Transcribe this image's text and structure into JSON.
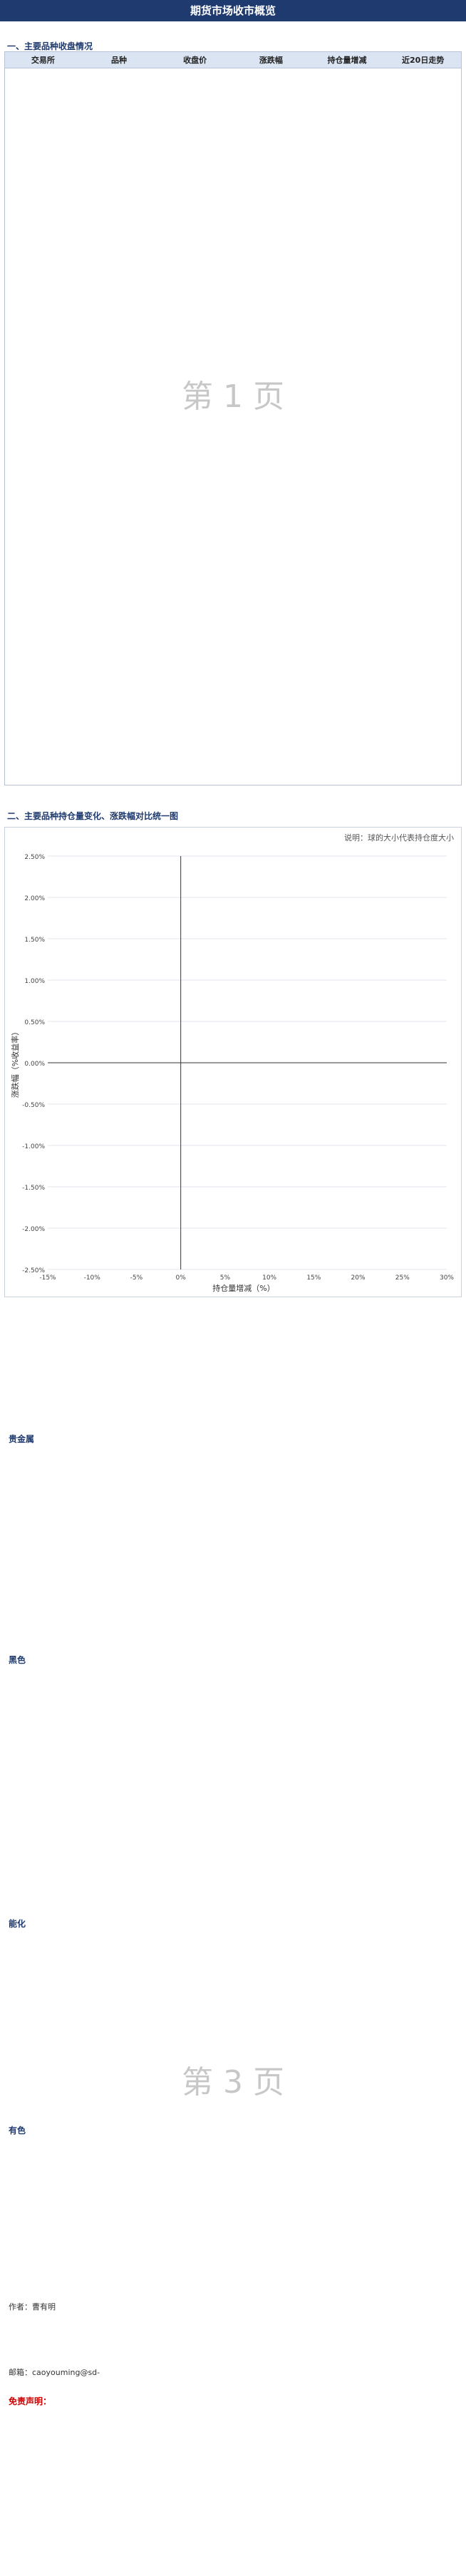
{
  "header": {
    "title": "期货市场收市概览"
  },
  "sections": {
    "s1": "一、主要品种收盘情况",
    "s2": "二、主要品种持仓量变化、涨跌幅对比统一图"
  },
  "table": {
    "headers": [
      "交易所",
      "品种",
      "收盘价",
      "涨跌幅",
      "持仓量增减",
      "近20日走势"
    ]
  },
  "chart_data": {
    "type": "scatter",
    "title": "",
    "legend_note": "说明：球的大小代表持仓度大小",
    "xlabel": "持仓量增减（%）",
    "ylabel": "涨跌幅（%收益率）",
    "xlim": [
      -15,
      30
    ],
    "ylim": [
      -2.5,
      2.5
    ],
    "xticks": [
      "-15%",
      "-10%",
      "-5%",
      "0%",
      "5%",
      "10%",
      "15%",
      "20%",
      "25%",
      "30%"
    ],
    "yticks": [
      "2.50%",
      "2.00%",
      "1.50%",
      "1.00%",
      "0.50%",
      "0.00%",
      "-0.50%",
      "-1.00%",
      "-1.50%",
      "-2.00%",
      "-2.50%"
    ]
  },
  "blocks": [
    {
      "title": "贵金属"
    },
    {
      "title": "黑色"
    },
    {
      "title": "能化"
    },
    {
      "title": "有色"
    }
  ],
  "watermarks": [
    "第 1 页",
    "第 3 页"
  ],
  "author_info": {
    "author": "作者：曹有明",
    "email": "邮箱：caoyouming@sd-"
  },
  "disclaimer": {
    "title": "免责声明："
  }
}
